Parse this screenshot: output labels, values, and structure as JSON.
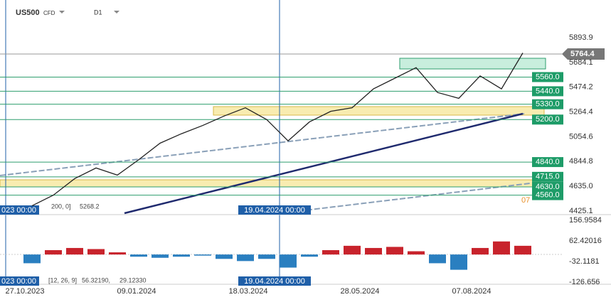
{
  "header": {
    "symbol": "US500",
    "instrument": "CFD",
    "timeframe": "D1"
  },
  "price_axis": [
    "5893.9",
    "5684.1",
    "5474.2",
    "5264.4",
    "5054.6",
    "4844.8",
    "4635.0",
    "4425.1"
  ],
  "current_price": "5764.4",
  "levels": [
    "5560.0",
    "5440.0",
    "5330.0",
    "5200.0",
    "4840.0",
    "4715.0",
    "4630.0",
    "4560.0"
  ],
  "level_fragment": "07",
  "ma_info": "200,  0]",
  "ma_value": "5268.2",
  "crosshair_date": "19.04.2024 00:00",
  "left_date": "023 00:00",
  "macd_axis": [
    "156.9584",
    "62.42016",
    "-32.1181",
    "-126.656"
  ],
  "macd_info": "[12, 26, 9]",
  "macd_values": [
    "56.32190,",
    "29.12330"
  ],
  "dates": [
    "27.10.2023",
    "09.01.2024",
    "18.03.2024",
    "28.05.2024",
    "07.08.2024"
  ],
  "price_closes": [
    4470,
    4560,
    4700,
    4790,
    4730,
    4860,
    5000,
    5080,
    5150,
    5230,
    5300,
    5200,
    5020,
    5180,
    5270,
    5300,
    5460,
    5550,
    5640,
    5430,
    5380,
    5570,
    5460,
    5764.4
  ],
  "macd_hist": [
    -40,
    20,
    30,
    25,
    10,
    -10,
    -15,
    -10,
    -5,
    -20,
    -30,
    -20,
    -60,
    -10,
    20,
    40,
    30,
    35,
    15,
    -40,
    -70,
    30,
    60,
    40
  ]
}
